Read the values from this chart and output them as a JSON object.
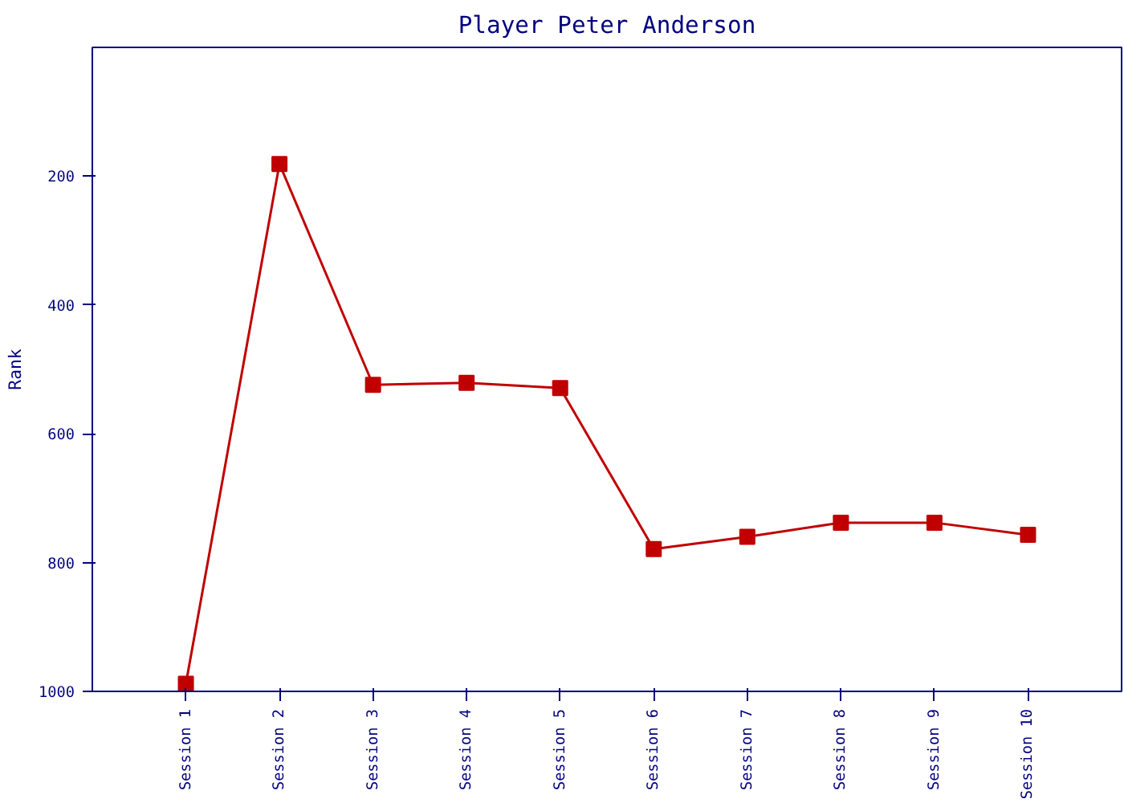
{
  "chart_data": {
    "type": "line",
    "title": "Player Peter Anderson",
    "ylabel": "Rank",
    "categories": [
      "Session 1",
      "Session 2",
      "Session 3",
      "Session 4",
      "Session 5",
      "Session 6",
      "Session 7",
      "Session 8",
      "Session 9",
      "Session 10"
    ],
    "series": [
      {
        "color": "#c00000",
        "values": [
          988,
          181,
          524,
          521,
          529,
          779,
          760,
          738,
          738,
          757
        ]
      }
    ],
    "ylim": [
      1000,
      0
    ],
    "yticks": [
      200,
      400,
      600,
      800,
      1000
    ],
    "grid": false,
    "marker": "square",
    "line_style": "solid"
  }
}
